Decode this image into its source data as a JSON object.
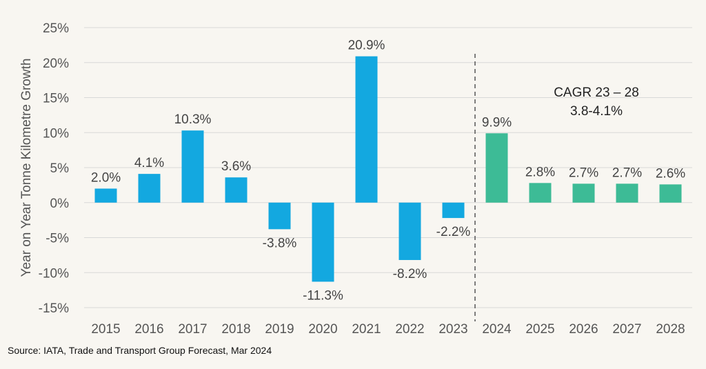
{
  "chart_data": {
    "type": "bar",
    "categories": [
      "2015",
      "2016",
      "2017",
      "2018",
      "2019",
      "2020",
      "2021",
      "2022",
      "2023",
      "2024",
      "2025",
      "2026",
      "2027",
      "2028"
    ],
    "series": [
      {
        "values": [
          2.0,
          4.1,
          10.3,
          3.6,
          -3.8,
          -11.3,
          20.9,
          -8.2,
          -2.2,
          9.9,
          2.8,
          2.7,
          2.7,
          2.6
        ],
        "data_labels": [
          "2.0%",
          "4.1%",
          "10.3%",
          "3.6%",
          "-3.8%",
          "-11.3%",
          "20.9%",
          "-8.2%",
          "-2.2%",
          "9.9%",
          "2.8%",
          "2.7%",
          "2.7%",
          "2.6%"
        ]
      }
    ],
    "colors": {
      "actual": "#13a8e0",
      "forecast": "#3dbb96"
    },
    "forecast_start": "2024",
    "ylabel": "Year on Year Tonne Kilometre Growth",
    "xlabel": "",
    "title": "",
    "ylim": [
      -15,
      25
    ],
    "yticks": [
      25,
      20,
      15,
      10,
      5,
      0,
      -5,
      -10,
      -15
    ],
    "ytick_labels": [
      "25%",
      "20%",
      "15%",
      "10%",
      "5%",
      "0%",
      "-5%",
      "-10%",
      "-15%"
    ],
    "grid": true,
    "legend": "none",
    "annotation": {
      "line1": "CAGR 23 – 28",
      "line2": "3.8-4.1%"
    }
  },
  "source": "Source: IATA, Trade and Transport Group Forecast, Mar 2024"
}
